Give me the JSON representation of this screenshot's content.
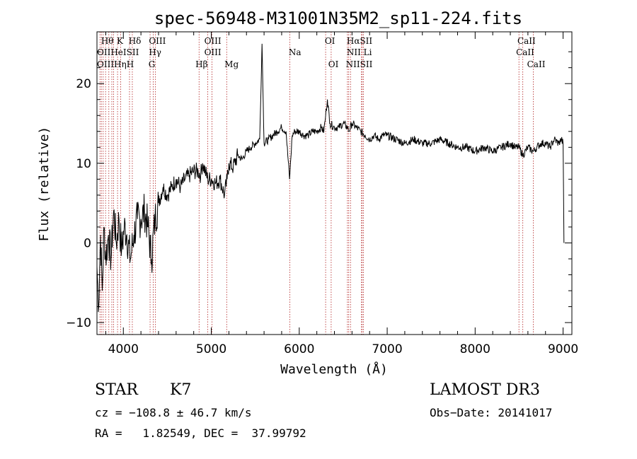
{
  "chart_data": {
    "type": "line",
    "title": "spec-56948-M31001N35M2_sp11-224.fits",
    "xlabel": "Wavelength (Å)",
    "ylabel": "Flux (relative)",
    "xlim": [
      3700,
      9100
    ],
    "ylim": [
      -11.5,
      26.5
    ],
    "xticks": [
      4000,
      5000,
      6000,
      7000,
      8000,
      9000
    ],
    "yticks": [
      -10,
      0,
      10,
      20
    ],
    "grid": false,
    "series": [
      {
        "name": "flux",
        "x": [
          3700,
          3720,
          3740,
          3760,
          3780,
          3800,
          3830,
          3860,
          3890,
          3920,
          3950,
          3980,
          4010,
          4040,
          4080,
          4120,
          4160,
          4200,
          4240,
          4280,
          4320,
          4360,
          4400,
          4450,
          4500,
          4550,
          4600,
          4650,
          4700,
          4750,
          4800,
          4850,
          4880,
          4900,
          4930,
          4960,
          5000,
          5050,
          5100,
          5150,
          5180,
          5200,
          5250,
          5300,
          5350,
          5400,
          5450,
          5500,
          5550,
          5577,
          5600,
          5650,
          5700,
          5750,
          5800,
          5850,
          5890,
          5920,
          5950,
          6000,
          6050,
          6100,
          6150,
          6200,
          6250,
          6280,
          6300,
          6320,
          6350,
          6400,
          6450,
          6500,
          6550,
          6563,
          6600,
          6650,
          6700,
          6750,
          6800,
          6850,
          6900,
          6950,
          7000,
          7100,
          7200,
          7300,
          7400,
          7500,
          7600,
          7700,
          7800,
          7900,
          8000,
          8100,
          8200,
          8300,
          8400,
          8450,
          8500,
          8542,
          8600,
          8662,
          8700,
          8750,
          8800,
          8850,
          8900,
          8950,
          8980,
          9000,
          9010
        ],
        "y": [
          -3,
          -8,
          1,
          -6,
          2,
          -2,
          1,
          -2,
          4,
          0,
          3,
          -1,
          2,
          1,
          -2,
          1,
          3,
          3,
          4,
          2,
          -2,
          3,
          5,
          7,
          6,
          7,
          8,
          7,
          8,
          8.5,
          9,
          9,
          8.5,
          10,
          9,
          8,
          8,
          7.5,
          8,
          6,
          8,
          10,
          9.5,
          11,
          10.5,
          11.5,
          12,
          12.5,
          13,
          25,
          12.5,
          13,
          13.5,
          14,
          14.5,
          14,
          8,
          13.5,
          14,
          14,
          13.5,
          13.5,
          14,
          14,
          14.5,
          14,
          16,
          18,
          15,
          14.5,
          14.5,
          15,
          14.5,
          14,
          15,
          14.5,
          14,
          13.5,
          13,
          13.5,
          13,
          13.5,
          13.5,
          13,
          12.5,
          13,
          12.5,
          12.5,
          13,
          12.5,
          12,
          12,
          11.5,
          12,
          11.5,
          12,
          12.5,
          12,
          12,
          11,
          12,
          11.5,
          12,
          12.5,
          12.5,
          12,
          13,
          12.5,
          13,
          12.5,
          0
        ]
      }
    ],
    "lines": [
      {
        "wl": 3734,
        "label": "OII"
      },
      {
        "wl": 3750,
        "label": "Hθ"
      },
      {
        "wl": 3771,
        "label": "OIII"
      },
      {
        "wl": 3798,
        "label": "OII"
      },
      {
        "wl": 3835,
        "label": "Hη"
      },
      {
        "wl": 3869,
        "label": "HeI"
      },
      {
        "wl": 3889,
        "label": "H"
      },
      {
        "wl": 3934,
        "label": "K"
      },
      {
        "wl": 3969,
        "label": "H"
      },
      {
        "wl": 4070,
        "label": "SII"
      },
      {
        "wl": 4102,
        "label": "Hδ"
      },
      {
        "wl": 4304,
        "label": "G"
      },
      {
        "wl": 4340,
        "label": "Hγ"
      },
      {
        "wl": 4363,
        "label": "OIII"
      },
      {
        "wl": 4861,
        "label": "Hβ"
      },
      {
        "wl": 4959,
        "label": "OIII"
      },
      {
        "wl": 5007,
        "label": "OIII"
      },
      {
        "wl": 5175,
        "label": "Mg"
      },
      {
        "wl": 5893,
        "label": "Na"
      },
      {
        "wl": 6300,
        "label": "OI"
      },
      {
        "wl": 6363,
        "label": "OI"
      },
      {
        "wl": 6548,
        "label": "NII"
      },
      {
        "wl": 6563,
        "label": "Hα"
      },
      {
        "wl": 6583,
        "label": "NII"
      },
      {
        "wl": 6708,
        "label": "Li"
      },
      {
        "wl": 6716,
        "label": "SII"
      },
      {
        "wl": 6731,
        "label": "SII"
      },
      {
        "wl": 8498,
        "label": "CaII"
      },
      {
        "wl": 8542,
        "label": "CaII"
      },
      {
        "wl": 8662,
        "label": "CaII"
      }
    ],
    "line_label_text": {
      "row1": [
        "Hθ",
        "K",
        "Hδ",
        "OIII",
        "OIII",
        "OI",
        "HαSII",
        "CaII"
      ],
      "row2": [
        "OIIHeISII",
        "Hγ",
        "OIII",
        "Na",
        "NII Li",
        "CaII"
      ],
      "row3": [
        "OIIIHηH",
        "G",
        "Hβ",
        "Mg",
        "OI",
        "NIISII",
        "CaII"
      ]
    }
  },
  "info": {
    "class_label": "STAR",
    "subclass": "K7",
    "survey": "LAMOST DR3",
    "cz": "cz = −108.8 ± 46.7 km/s",
    "obs_date": "Obs−Date: 20141017",
    "radec": "RA =   1.82549, DEC =  37.99792"
  },
  "colors": {
    "line_marker": "#b22222",
    "spectrum": "#000000"
  }
}
